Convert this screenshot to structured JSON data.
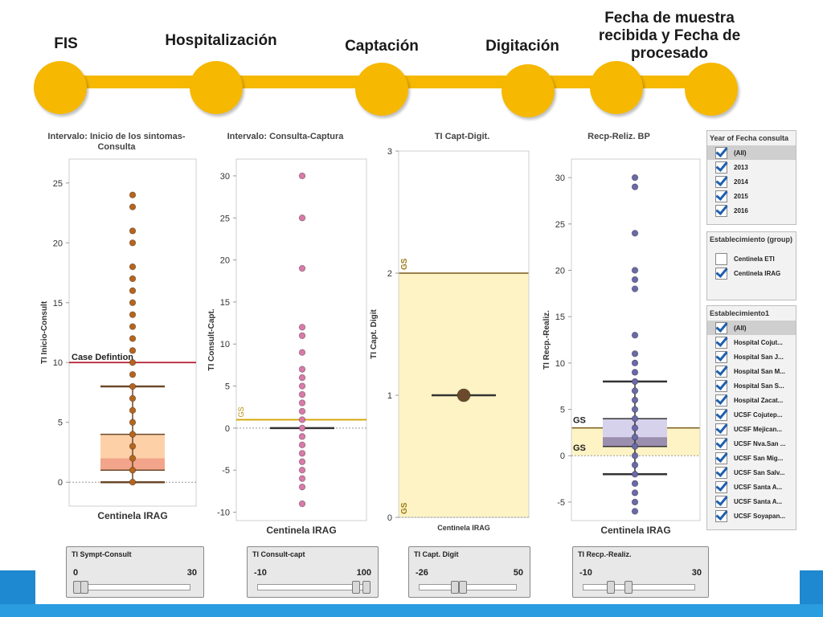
{
  "timeline": {
    "stages": [
      {
        "label": "FIS"
      },
      {
        "label": "Hospitalización"
      },
      {
        "label": "Captación"
      },
      {
        "label": "Digitación"
      },
      {
        "label": "Fecha de muestra recibida y Fecha de procesado"
      }
    ],
    "color": "#f6b800"
  },
  "chart_data": [
    {
      "type": "scatter",
      "title": "Intervalo: Inicio de los sintomas- Consulta",
      "xlabel": "Centinela IRAG",
      "ylabel": "TI Inicio-Consult",
      "ylim": [
        -2,
        27
      ],
      "yticks": [
        0,
        5,
        10,
        15,
        20,
        25
      ],
      "reference_line": {
        "label": "Case Defintion",
        "value": 10,
        "color": "#b01c2e"
      },
      "box": {
        "min": 0,
        "q1": 1,
        "median": 2,
        "q3": 4,
        "max": 8
      },
      "points": [
        0,
        1,
        2,
        3,
        4,
        5,
        6,
        7,
        8,
        9,
        10,
        11,
        12,
        13,
        14,
        15,
        16,
        17,
        18,
        20,
        21,
        23,
        24
      ],
      "point_color": "#b5651d"
    },
    {
      "type": "scatter",
      "title": "Intervalo: Consulta-Captura",
      "xlabel": "Centinela IRAG",
      "ylabel": "TI Consult-Capt.",
      "ylim": [
        -11,
        32
      ],
      "yticks": [
        -10,
        -5,
        0,
        5,
        10,
        15,
        20,
        25,
        30
      ],
      "reference_line": {
        "label": "GS",
        "value": 1,
        "color": "#d4a300"
      },
      "median_line": 0,
      "points": [
        -9,
        -7,
        -6,
        -5,
        -4,
        -3,
        -2,
        -1,
        0,
        1,
        2,
        3,
        4,
        5,
        6,
        7,
        9,
        11,
        12,
        19,
        25,
        30
      ],
      "point_color": "#d97aa8"
    },
    {
      "type": "scatter",
      "title": "TI Capt-Digit.",
      "xlabel": "Centinela IRAG",
      "ylabel": "TI Capt. Digit",
      "ylim": [
        0,
        3
      ],
      "yticks": [
        0,
        1,
        2,
        3
      ],
      "band": {
        "from": 0,
        "to": 2,
        "labels": [
          "GS",
          "GS"
        ],
        "color": "#fdf3c4"
      },
      "median_line": 1,
      "points": [
        1
      ],
      "point_color": "#6b4a2b"
    },
    {
      "type": "scatter",
      "title": "Recp-Reliz. BP",
      "xlabel": "Centinela IRAG",
      "ylabel": "TI Recp.-Realiz.",
      "ylim": [
        -7,
        32
      ],
      "yticks": [
        -5,
        0,
        5,
        10,
        15,
        20,
        25,
        30
      ],
      "band": {
        "from": 0,
        "to": 3,
        "labels": [
          "GS",
          "GS"
        ],
        "color": "#fdf3c4"
      },
      "box": {
        "min": -2,
        "q1": 1,
        "median": 2,
        "q3": 4,
        "max": 8
      },
      "points": [
        -6,
        -5,
        -4,
        -3,
        -2,
        -1,
        0,
        1,
        2,
        3,
        4,
        5,
        6,
        7,
        8,
        9,
        10,
        11,
        13,
        18,
        19,
        20,
        24,
        29,
        30
      ],
      "point_color": "#6a6aa8"
    }
  ],
  "filters": {
    "year": {
      "header": "Year of Fecha consulta",
      "items": [
        {
          "label": "(All)",
          "checked": true,
          "selected": true
        },
        {
          "label": "2013",
          "checked": true
        },
        {
          "label": "2014",
          "checked": true
        },
        {
          "label": "2015",
          "checked": true
        },
        {
          "label": "2016",
          "checked": true
        }
      ]
    },
    "group": {
      "header": "Establecimiento (group)",
      "items": [
        {
          "label": "Centinela ETI",
          "checked": false
        },
        {
          "label": "Centinela IRAG",
          "checked": true
        }
      ]
    },
    "establecimiento": {
      "header": "Establecimiento1",
      "items": [
        {
          "label": "(All)",
          "checked": true,
          "selected": true
        },
        {
          "label": "Hospital Cojut...",
          "checked": true
        },
        {
          "label": "Hospital San J...",
          "checked": true
        },
        {
          "label": "Hospital San M...",
          "checked": true
        },
        {
          "label": "Hospital San S...",
          "checked": true
        },
        {
          "label": "Hospital Zacat...",
          "checked": true
        },
        {
          "label": "UCSF Cojutep...",
          "checked": true
        },
        {
          "label": "UCSF Mejican...",
          "checked": true
        },
        {
          "label": "UCSF Nva.San ...",
          "checked": true
        },
        {
          "label": "UCSF San Mig...",
          "checked": true
        },
        {
          "label": "UCSF San Salv...",
          "checked": true
        },
        {
          "label": "UCSF Santa A...",
          "checked": true
        },
        {
          "label": "UCSF Santa A...",
          "checked": true
        },
        {
          "label": "UCSF Soyapan...",
          "checked": true
        }
      ]
    }
  },
  "sliders": [
    {
      "title": "TI Sympt-Consult",
      "min": "0",
      "max": "30"
    },
    {
      "title": "TI Consult-capt",
      "min": "-10",
      "max": "100"
    },
    {
      "title": "TI Capt. Digit",
      "min": "-26",
      "max": "50"
    },
    {
      "title": "TI Recp.-Realiz.",
      "min": "-10",
      "max": "30"
    }
  ]
}
